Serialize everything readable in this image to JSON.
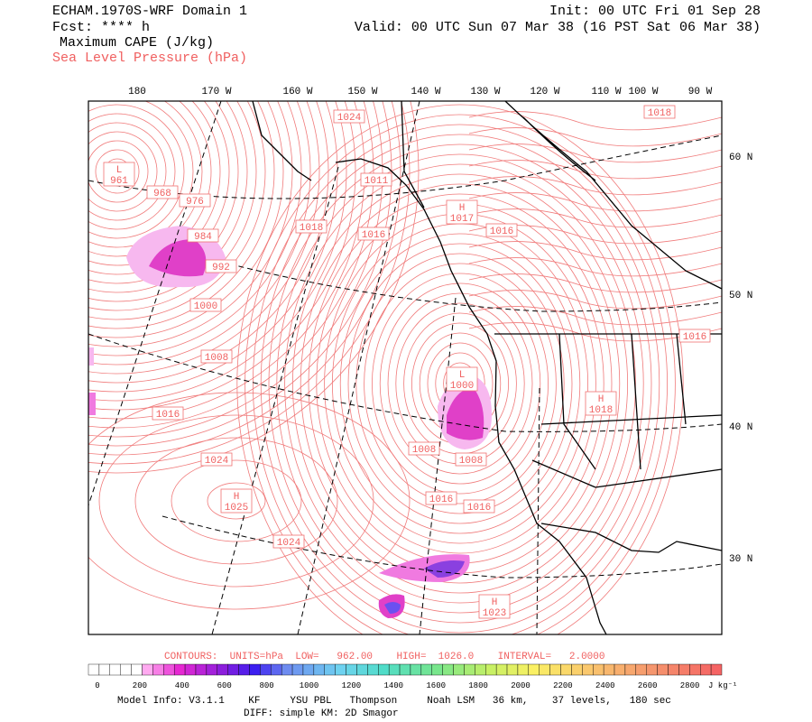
{
  "header": {
    "title": "ECHAM.1970S-WRF Domain 1",
    "forecast": "Fcst: **** h",
    "field1": "Maximum CAPE (J/kg)",
    "field2": "Sea Level Pressure (hPa)",
    "init": "Init: 00 UTC Fri 01 Sep 28",
    "valid": "Valid: 00 UTC Sun 07 Mar 38 (16 PST Sat 06 Mar 38)"
  },
  "map": {
    "lon_labels": [
      "180",
      "170 W",
      "160 W",
      "150 W",
      "140 W",
      "130 W",
      "120 W",
      "110 W",
      "100 W",
      "90 W"
    ],
    "lat_labels": [
      "60 N",
      "50 N",
      "40 N",
      "30 N"
    ],
    "pressure_labels": [
      {
        "center": "L",
        "value": "961"
      },
      {
        "value": "968"
      },
      {
        "value": "976"
      },
      {
        "value": "984"
      },
      {
        "value": "992"
      },
      {
        "value": "1000"
      },
      {
        "value": "1008"
      },
      {
        "value": "1016"
      },
      {
        "value": "1024"
      },
      {
        "center": "H",
        "value": "1025"
      },
      {
        "value": "1024"
      },
      {
        "value": "1024"
      },
      {
        "value": "1011"
      },
      {
        "value": "1018"
      },
      {
        "value": "1016"
      },
      {
        "center": "H",
        "value": "1017"
      },
      {
        "value": "1016"
      },
      {
        "value": "1018"
      },
      {
        "value": "1016"
      },
      {
        "center": "H",
        "value": "1018"
      },
      {
        "center": "L",
        "value": "1000"
      },
      {
        "value": "1008"
      },
      {
        "value": "1008"
      },
      {
        "value": "1016"
      },
      {
        "value": "1016"
      },
      {
        "center": "H",
        "value": "1023"
      }
    ]
  },
  "footer": {
    "contours": "CONTOURS:  UNITS=hPa  LOW=   962.00    HIGH=  1026.0    INTERVAL=   2.0000",
    "colorbar_labels": [
      "0",
      "200",
      "400",
      "600",
      "800",
      "1000",
      "1200",
      "1400",
      "1600",
      "1800",
      "2000",
      "2200",
      "2400",
      "2600",
      "2800"
    ],
    "colorbar_units": "J kg⁻¹",
    "model_info": "Model Info: V3.1.1    KF     YSU PBL   Thompson     Noah LSM   36 km,    37 levels,   180 sec",
    "diff": "DIFF: simple KM: 2D Smagor"
  }
}
